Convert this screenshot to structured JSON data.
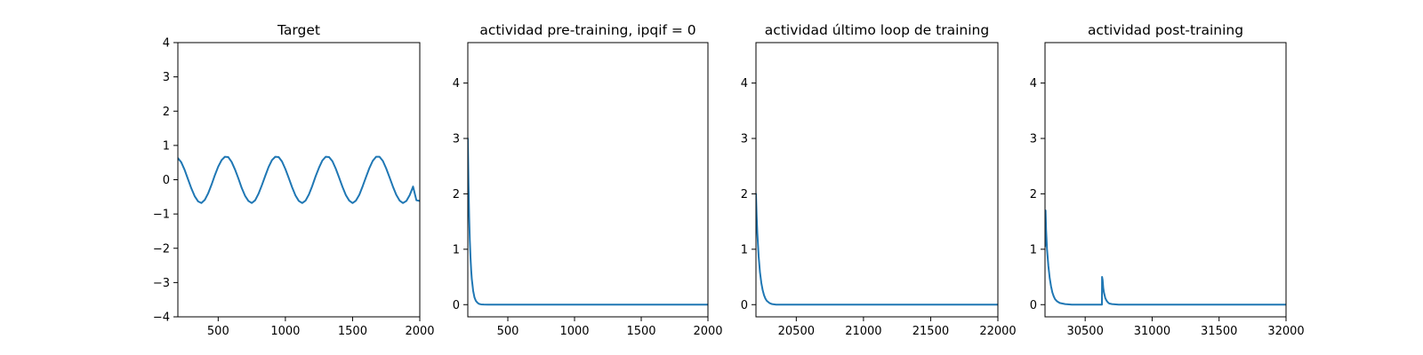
{
  "chart_data": [
    {
      "type": "line",
      "title": "Target",
      "xlim": [
        200,
        2000
      ],
      "ylim": [
        -4,
        4
      ],
      "xticks": [
        500,
        1000,
        1500,
        2000
      ],
      "xtick_labels": [
        "500",
        "1000",
        "1500",
        "2000"
      ],
      "yticks": [
        -4,
        -3,
        -2,
        -1,
        0,
        1,
        2,
        3,
        4
      ],
      "ytick_labels": [
        "−4",
        "−3",
        "−2",
        "−1",
        "0",
        "1",
        "2",
        "3",
        "4"
      ],
      "grid": false,
      "series": [
        {
          "color": "#1f77b4",
          "x": [
            200,
            225,
            250,
            275,
            300,
            325,
            350,
            375,
            400,
            425,
            450,
            475,
            500,
            525,
            550,
            575,
            600,
            625,
            650,
            675,
            700,
            725,
            750,
            775,
            800,
            825,
            850,
            875,
            900,
            925,
            950,
            975,
            1000,
            1025,
            1050,
            1075,
            1100,
            1125,
            1150,
            1175,
            1200,
            1225,
            1250,
            1275,
            1300,
            1325,
            1350,
            1375,
            1400,
            1425,
            1450,
            1475,
            1500,
            1525,
            1550,
            1575,
            1600,
            1625,
            1650,
            1675,
            1700,
            1725,
            1750,
            1775,
            1800,
            1825,
            1850,
            1875,
            1900,
            1925,
            1950,
            1975,
            2000
          ],
          "y": [
            0.63,
            0.51,
            0.29,
            0.02,
            -0.25,
            -0.48,
            -0.63,
            -0.68,
            -0.59,
            -0.4,
            -0.15,
            0.13,
            0.38,
            0.57,
            0.67,
            0.66,
            0.52,
            0.3,
            0.04,
            -0.24,
            -0.47,
            -0.62,
            -0.68,
            -0.6,
            -0.41,
            -0.16,
            0.11,
            0.37,
            0.57,
            0.67,
            0.66,
            0.53,
            0.31,
            0.05,
            -0.22,
            -0.46,
            -0.62,
            -0.68,
            -0.61,
            -0.43,
            -0.18,
            0.1,
            0.35,
            0.56,
            0.67,
            0.66,
            0.54,
            0.32,
            0.06,
            -0.21,
            -0.45,
            -0.61,
            -0.68,
            -0.61,
            -0.44,
            -0.19,
            0.08,
            0.34,
            0.55,
            0.67,
            0.67,
            0.55,
            0.33,
            0.07,
            -0.2,
            -0.44,
            -0.61,
            -0.68,
            -0.62,
            -0.45,
            -0.2,
            -0.6,
            -0.62
          ]
        }
      ]
    },
    {
      "type": "line",
      "title": "actividad pre-training, ipqif = 0",
      "xlim": [
        200,
        2000
      ],
      "ylim": [
        -0.22,
        4.73
      ],
      "xticks": [
        500,
        1000,
        1500,
        2000
      ],
      "xtick_labels": [
        "500",
        "1000",
        "1500",
        "2000"
      ],
      "yticks": [
        0,
        1,
        2,
        3,
        4
      ],
      "ytick_labels": [
        "0",
        "1",
        "2",
        "3",
        "4"
      ],
      "grid": false,
      "series": [
        {
          "color": "#1f77b4",
          "x": [
            200,
            205,
            210,
            215,
            220,
            225,
            230,
            240,
            250,
            260,
            270,
            280,
            290,
            300,
            320,
            350,
            400,
            500,
            700,
            1000,
            1500,
            2000
          ],
          "y": [
            3.0,
            2.2,
            1.6,
            1.17,
            0.86,
            0.63,
            0.46,
            0.25,
            0.13,
            0.07,
            0.04,
            0.02,
            0.01,
            0.005,
            0.002,
            0.0,
            0.0,
            0.0,
            0.0,
            0.0,
            0.0,
            0.0
          ]
        }
      ]
    },
    {
      "type": "line",
      "title": "actividad último loop de training",
      "xlim": [
        20200,
        22000
      ],
      "ylim": [
        -0.22,
        4.73
      ],
      "xticks": [
        20500,
        21000,
        21500,
        22000
      ],
      "xtick_labels": [
        "20500",
        "21000",
        "21500",
        "22000"
      ],
      "yticks": [
        0,
        1,
        2,
        3,
        4
      ],
      "ytick_labels": [
        "0",
        "1",
        "2",
        "3",
        "4"
      ],
      "grid": false,
      "series": [
        {
          "color": "#1f77b4",
          "x": [
            20200,
            20205,
            20210,
            20220,
            20230,
            20240,
            20250,
            20260,
            20270,
            20280,
            20290,
            20300,
            20320,
            20350,
            20400,
            20500,
            21000,
            21500,
            22000
          ],
          "y": [
            2.0,
            1.6,
            1.3,
            0.87,
            0.58,
            0.39,
            0.26,
            0.17,
            0.11,
            0.07,
            0.05,
            0.03,
            0.01,
            0.0,
            0.0,
            0.0,
            0.0,
            0.0,
            0.0
          ]
        }
      ]
    },
    {
      "type": "line",
      "title": "actividad post-training",
      "xlim": [
        30200,
        32000
      ],
      "ylim": [
        -0.22,
        4.73
      ],
      "xticks": [
        30500,
        31000,
        31500,
        32000
      ],
      "xtick_labels": [
        "30500",
        "31000",
        "31500",
        "32000"
      ],
      "yticks": [
        0,
        1,
        2,
        3,
        4
      ],
      "ytick_labels": [
        "0",
        "1",
        "2",
        "3",
        "4"
      ],
      "grid": false,
      "series": [
        {
          "color": "#1f77b4",
          "x": [
            30200,
            30204,
            30208,
            30215,
            30225,
            30235,
            30245,
            30255,
            30265,
            30275,
            30290,
            30310,
            30350,
            30400,
            30500,
            30600,
            30625,
            30626,
            30630,
            30635,
            30640,
            30650,
            30660,
            30670,
            30680,
            30700,
            30750,
            30800,
            31000,
            31500,
            32000
          ],
          "y": [
            1.05,
            1.7,
            1.35,
            1.0,
            0.7,
            0.48,
            0.33,
            0.22,
            0.15,
            0.1,
            0.06,
            0.03,
            0.01,
            0.0,
            0.0,
            0.0,
            0.0,
            0.5,
            0.45,
            0.3,
            0.22,
            0.12,
            0.07,
            0.04,
            0.02,
            0.01,
            0.0,
            0.0,
            0.0,
            0.0,
            0.0
          ]
        }
      ]
    }
  ]
}
